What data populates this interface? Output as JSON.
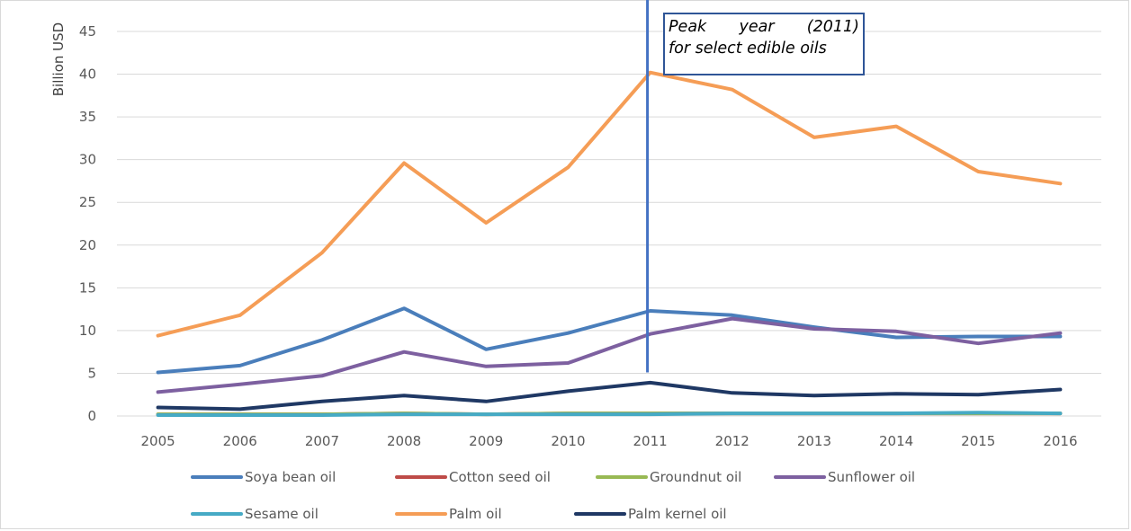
{
  "chart_data": {
    "type": "line",
    "ylabel": "Billion USD",
    "xlabel": "",
    "ylim": [
      0,
      45
    ],
    "yticks": [
      "0",
      "5",
      "10",
      "15",
      "20",
      "25",
      "30",
      "35",
      "40",
      "45"
    ],
    "categories": [
      "2005",
      "2006",
      "2007",
      "2008",
      "2009",
      "2010",
      "2011",
      "2012",
      "2013",
      "2014",
      "2015",
      "2016"
    ],
    "grid": true,
    "legend_position": "bottom",
    "series": [
      {
        "name": "Soya bean oil",
        "color": "#4a7ebb",
        "values": [
          5.1,
          5.9,
          8.9,
          12.6,
          7.8,
          9.7,
          12.3,
          11.8,
          10.4,
          9.2,
          9.3,
          9.3
        ]
      },
      {
        "name": "Cotton seed oil",
        "color": "#be4b48",
        "values": [
          0.2,
          0.2,
          0.2,
          0.3,
          0.2,
          0.3,
          0.3,
          0.3,
          0.3,
          0.3,
          0.3,
          0.3
        ]
      },
      {
        "name": "Groundnut oil",
        "color": "#98b954",
        "values": [
          0.2,
          0.2,
          0.2,
          0.3,
          0.2,
          0.3,
          0.3,
          0.3,
          0.3,
          0.3,
          0.3,
          0.3
        ]
      },
      {
        "name": "Sunflower oil",
        "color": "#7d60a0",
        "values": [
          2.8,
          3.7,
          4.7,
          7.5,
          5.8,
          6.2,
          9.6,
          11.4,
          10.2,
          9.9,
          8.5,
          9.7
        ]
      },
      {
        "name": "Sesame oil",
        "color": "#46aac5",
        "values": [
          0.1,
          0.1,
          0.1,
          0.2,
          0.2,
          0.2,
          0.2,
          0.3,
          0.3,
          0.3,
          0.4,
          0.3
        ]
      },
      {
        "name": "Palm oil",
        "color": "#f59d56",
        "values": [
          9.4,
          11.8,
          19.1,
          29.6,
          22.6,
          29.1,
          40.2,
          38.2,
          32.6,
          33.9,
          28.6,
          27.2
        ]
      },
      {
        "name": "Palm kernel oil",
        "color": "#1f3864",
        "values": [
          1.0,
          0.8,
          1.7,
          2.4,
          1.7,
          2.9,
          3.9,
          2.7,
          2.4,
          2.6,
          2.5,
          3.1
        ]
      }
    ],
    "marker": {
      "category": "2011",
      "color": "#4472c4"
    },
    "annotation": {
      "line1": "Peak year (2011)",
      "line2": "for select edible oils",
      "border_color": "#2f5597"
    }
  }
}
